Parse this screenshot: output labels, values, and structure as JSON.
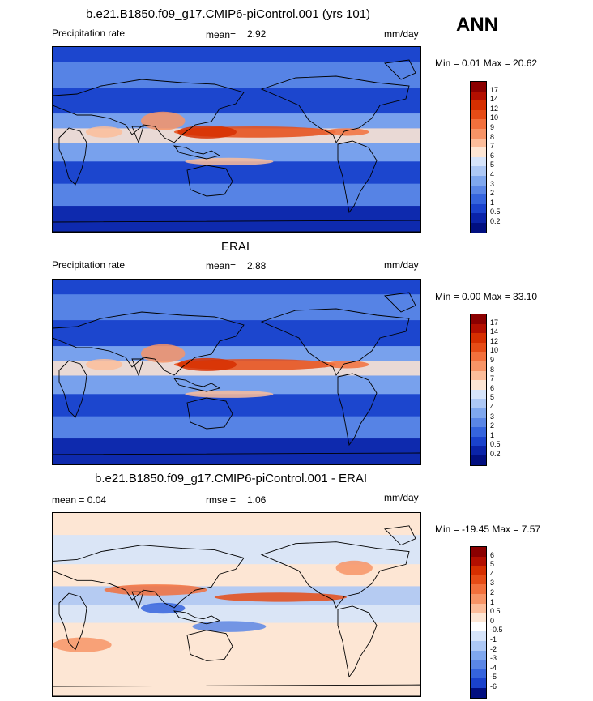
{
  "season": "ANN",
  "panels": [
    {
      "title": "b.e21.B1850.f09_g17.CMIP6-piControl.001 (yrs 101)",
      "left_label": "Precipitation rate",
      "mean_label": "mean=",
      "mean_value": "2.92",
      "units": "mm/day",
      "minmax": "Min =  0.01 Max =  20.62"
    },
    {
      "title": "ERAI",
      "left_label": "Precipitation rate",
      "mean_label": "mean=",
      "mean_value": "2.88",
      "units": "mm/day",
      "minmax": "Min =  0.00 Max =  33.10"
    },
    {
      "title": "b.e21.B1850.f09_g17.CMIP6-piControl.001 - ERAI",
      "left_label": "mean =   0.04",
      "mean_label": "rmse =",
      "mean_value": "1.06",
      "units": "mm/day",
      "minmax": "Min = -19.45 Max =   7.57"
    }
  ],
  "chart_data": [
    {
      "type": "heatmap",
      "title": "b.e21.B1850.f09_g17.CMIP6-piControl.001 (yrs 101)",
      "variable": "Precipitation rate",
      "units": "mm/day",
      "mean": 2.92,
      "min": 0.01,
      "max": 20.62,
      "colorbar_levels": [
        "17",
        "14",
        "12",
        "10",
        "9",
        "8",
        "7",
        "6",
        "5",
        "4",
        "3",
        "2",
        "1",
        "0.5",
        "0.2"
      ],
      "colorbar_colors": [
        "#8b0000",
        "#b30f00",
        "#d62f00",
        "#e64c16",
        "#f2703c",
        "#f79466",
        "#fcbd9a",
        "#fde6d4",
        "#d6e4fa",
        "#adc8f5",
        "#7fa7ee",
        "#5a86e6",
        "#3564dd",
        "#1a42cc",
        "#0a23a8",
        "#010f80"
      ]
    },
    {
      "type": "heatmap",
      "title": "ERAI",
      "variable": "Precipitation rate",
      "units": "mm/day",
      "mean": 2.88,
      "min": 0.0,
      "max": 33.1,
      "colorbar_levels": [
        "17",
        "14",
        "12",
        "10",
        "9",
        "8",
        "7",
        "6",
        "5",
        "4",
        "3",
        "2",
        "1",
        "0.5",
        "0.2"
      ],
      "colorbar_colors": [
        "#8b0000",
        "#b30f00",
        "#d62f00",
        "#e64c16",
        "#f2703c",
        "#f79466",
        "#fcbd9a",
        "#fde6d4",
        "#d6e4fa",
        "#adc8f5",
        "#7fa7ee",
        "#5a86e6",
        "#3564dd",
        "#1a42cc",
        "#0a23a8",
        "#010f80"
      ]
    },
    {
      "type": "heatmap",
      "title": "b.e21.B1850.f09_g17.CMIP6-piControl.001 - ERAI",
      "units": "mm/day",
      "mean": 0.04,
      "rmse": 1.06,
      "min": -19.45,
      "max": 7.57,
      "colorbar_levels": [
        "6",
        "5",
        "4",
        "3",
        "2",
        "1",
        "0.5",
        "0",
        "-0.5",
        "-1",
        "-2",
        "-3",
        "-4",
        "-5",
        "-6"
      ],
      "colorbar_colors": [
        "#8b0000",
        "#b30f00",
        "#d62f00",
        "#e64c16",
        "#f2703c",
        "#f79466",
        "#fcbd9a",
        "#fde6d4",
        "#ffffff",
        "#d6e4fa",
        "#adc8f5",
        "#7fa7ee",
        "#5a86e6",
        "#3564dd",
        "#1a42cc",
        "#010f80"
      ]
    }
  ]
}
